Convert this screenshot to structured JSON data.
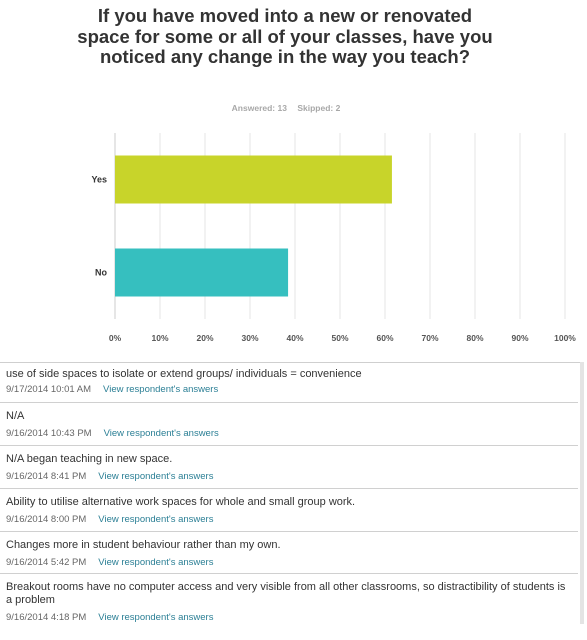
{
  "question": {
    "title": "If you have moved into a new or renovated space for some or all of your classes, have you noticed any change in the way you teach?",
    "answered": "Answered: 13",
    "skipped": "Skipped: 2"
  },
  "colors": {
    "yes_bar": "#c8d42a",
    "no_bar": "#36bfbf",
    "grid": "#e5e5e5",
    "link": "#2b7f95"
  },
  "chart_data": {
    "type": "bar",
    "orientation": "horizontal",
    "categories": [
      "Yes",
      "No"
    ],
    "values": [
      61.54,
      38.46
    ],
    "xlim": [
      0,
      100
    ],
    "x_ticks": [
      "0%",
      "10%",
      "20%",
      "30%",
      "40%",
      "50%",
      "60%",
      "70%",
      "80%",
      "90%",
      "100%"
    ],
    "grid": true,
    "colors": [
      "#c8d42a",
      "#36bfbf"
    ]
  },
  "responses": [
    {
      "text": "use of side spaces to isolate or extend groups/ individuals = convenience",
      "date": "9/17/2014 10:01 AM",
      "link": "View respondent's answers"
    },
    {
      "text": "N/A",
      "date": "9/16/2014 10:43 PM",
      "link": "View respondent's answers"
    },
    {
      "text": "N/A began teaching in new space.",
      "date": "9/16/2014 8:41 PM",
      "link": "View respondent's answers"
    },
    {
      "text": "Ability to utilise alternative work spaces for whole and small group work.",
      "date": "9/16/2014 8:00 PM",
      "link": "View respondent's answers"
    },
    {
      "text": "Changes more in student behaviour rather than my own.",
      "date": "9/16/2014 5:42 PM",
      "link": "View respondent's answers"
    },
    {
      "text": "Breakout rooms have no computer access and very visible from all other classrooms, so distractibility of students is a problem",
      "date": "9/16/2014 4:18 PM",
      "link": "View respondent's answers"
    }
  ]
}
